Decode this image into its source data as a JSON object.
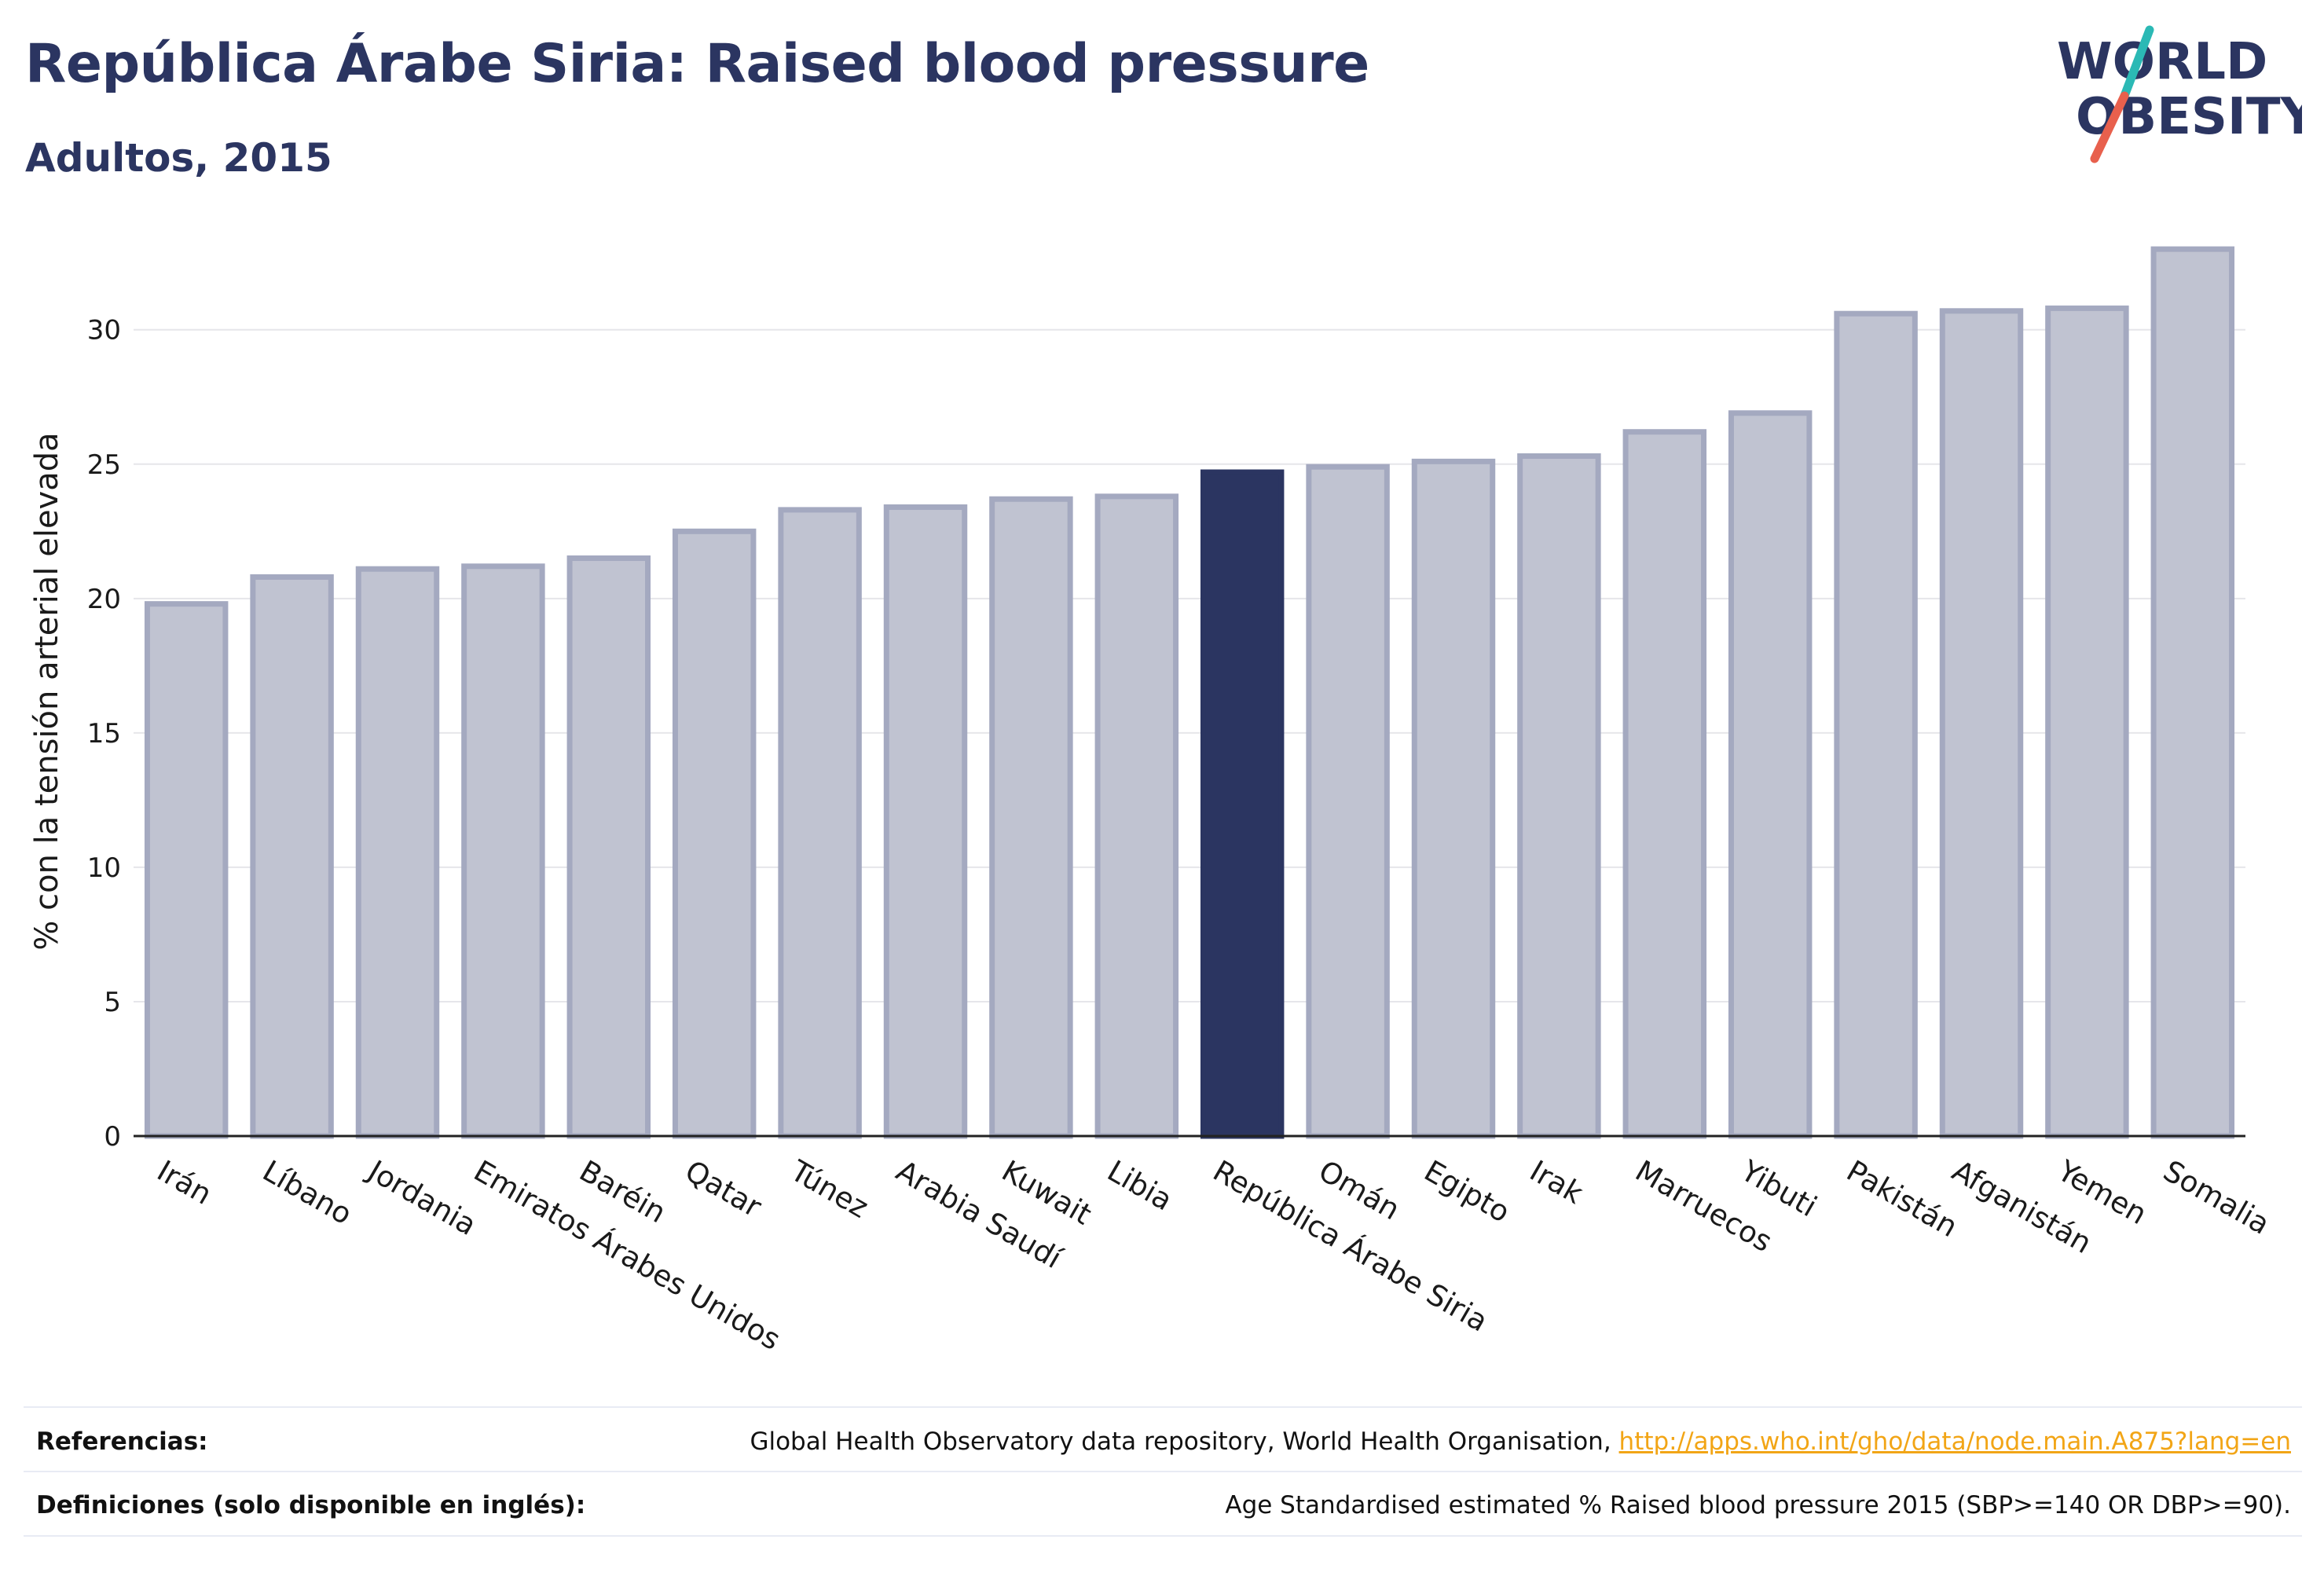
{
  "title": "República Árabe Siria: Raised blood pressure",
  "subtitle": "Adultos, 2015",
  "logo": {
    "line1": "WORLD",
    "line2": "OBESITY"
  },
  "colors": {
    "highlight": "#2b3561",
    "bar_fill": "#c0c3d1",
    "bar_stroke": "#a4a9c0",
    "logo_slash_teal": "#2bb9b5",
    "logo_slash_red": "#e8604d"
  },
  "chart_data": {
    "type": "bar",
    "title": "República Árabe Siria: Raised blood pressure",
    "subtitle": "Adultos, 2015",
    "xlabel": "",
    "ylabel": "% con la tensión arterial elevada",
    "ylim": [
      0,
      33.5
    ],
    "yticks": [
      0,
      5,
      10,
      15,
      20,
      25,
      30
    ],
    "grid": true,
    "highlight": "República Árabe Siria",
    "categories": [
      "Irán",
      "Líbano",
      "Jordania",
      "Emiratos Árabes Unidos",
      "Baréin",
      "Qatar",
      "Túnez",
      "Arabia Saudí",
      "Kuwait",
      "Libia",
      "República Árabe Siria",
      "Omán",
      "Egipto",
      "Irak",
      "Marruecos",
      "Yibuti",
      "Pakistán",
      "Afganistán",
      "Yemen",
      "Somalia"
    ],
    "values": [
      19.8,
      20.8,
      21.1,
      21.2,
      21.5,
      22.5,
      23.3,
      23.4,
      23.7,
      23.8,
      24.7,
      24.9,
      25.1,
      25.3,
      26.2,
      26.9,
      30.6,
      30.7,
      30.8,
      33.0
    ]
  },
  "footer": {
    "references_label": "Referencias:",
    "references_text": "Global Health Observatory data repository, World Health Organisation, ",
    "references_link": "http://apps.who.int/gho/data/node.main.A875?lang=en",
    "definitions_label": "Definiciones (solo disponible en inglés):",
    "definitions_text": "Age Standardised estimated % Raised blood pressure 2015 (SBP>=140 OR DBP>=90)."
  }
}
